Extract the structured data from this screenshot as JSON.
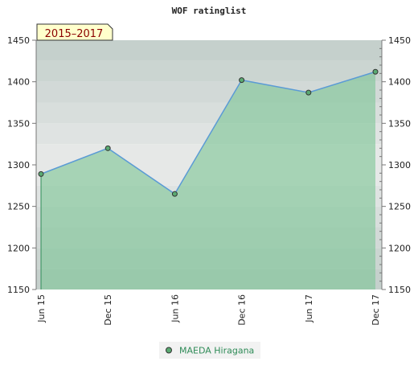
{
  "chart_data": {
    "type": "area",
    "title": "WOF ratinglist",
    "period_label": "2015–2017",
    "x": [
      "Jun 15",
      "Dec 15",
      "Jun 16",
      "Dec 16",
      "Jun 17",
      "Dec 17"
    ],
    "series": [
      {
        "name": "MAEDA Hiragana",
        "values": [
          1289,
          1320,
          1265,
          1402,
          1387,
          1412
        ]
      }
    ],
    "ylim": [
      1150,
      1450
    ],
    "y_ticks": [
      1150,
      1200,
      1250,
      1300,
      1350,
      1400,
      1450
    ],
    "y_axis": "both",
    "grid": false,
    "legend_position": "bottom",
    "colors": {
      "line": "#5b9bd5",
      "fill": "#7cc495",
      "point": "#5aaa72",
      "legend_text": "#2e8b57",
      "badge_bg": "#ffffcc",
      "badge_text": "#8b0000"
    }
  }
}
